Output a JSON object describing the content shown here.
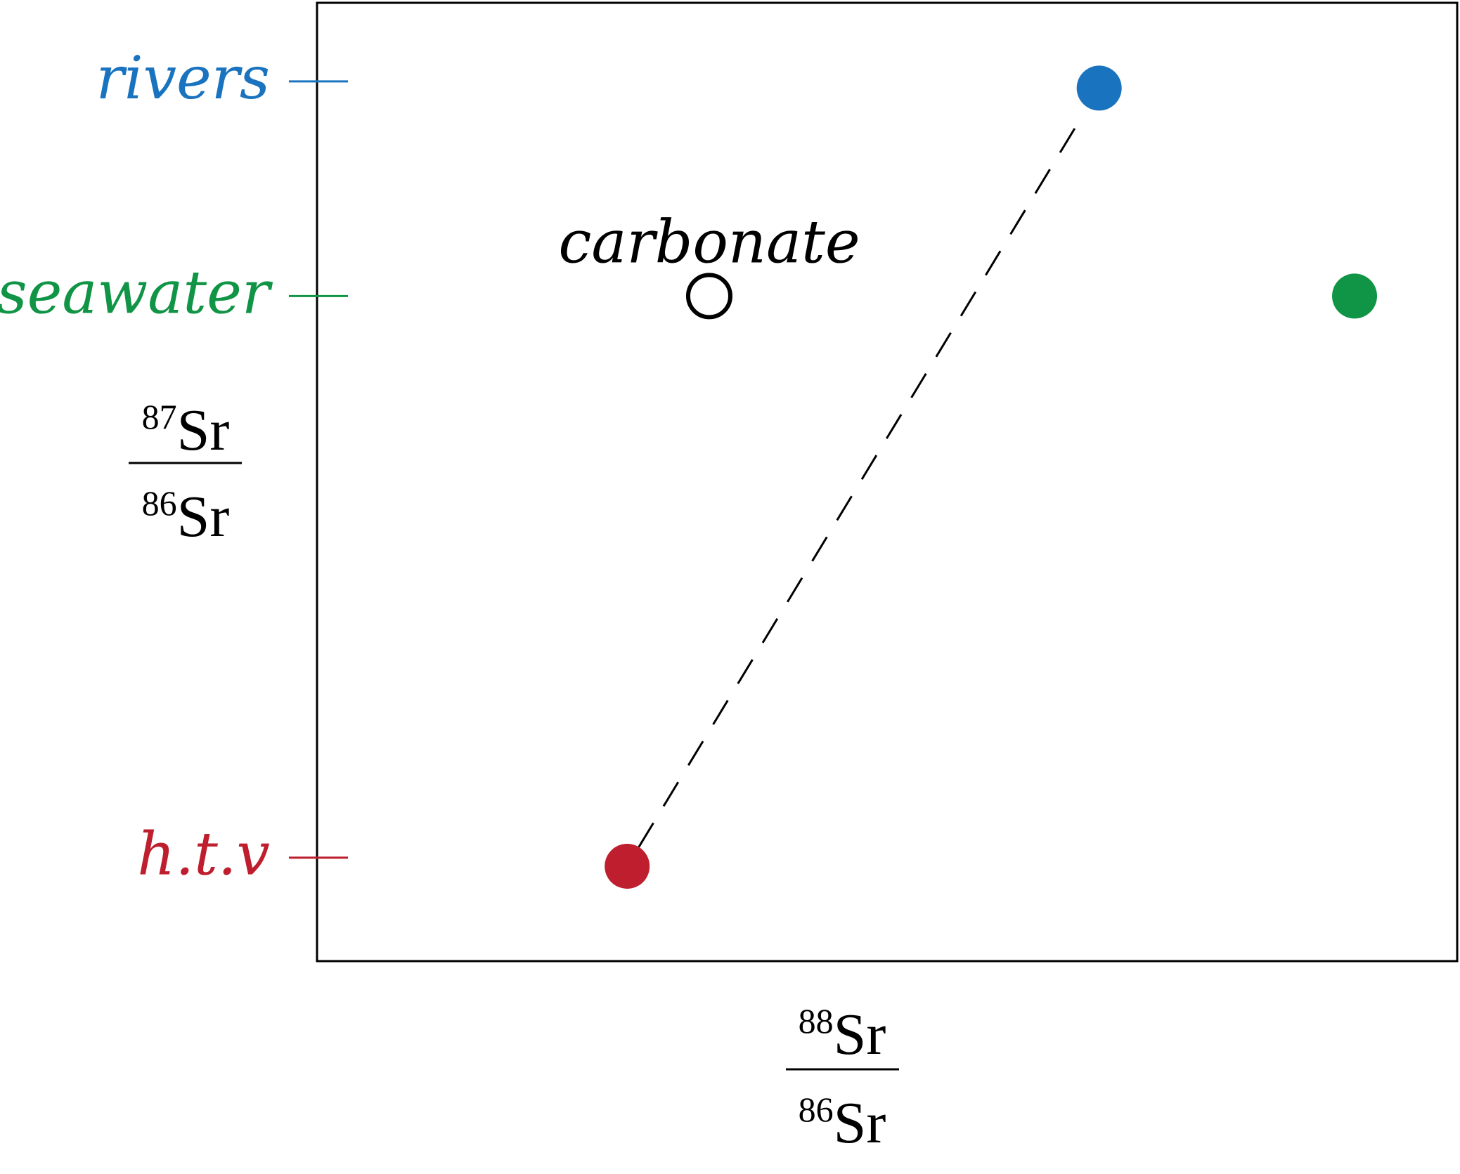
{
  "chart_data": {
    "type": "scatter",
    "title": "",
    "xlabel": {
      "numerator": {
        "mass": "88",
        "element": "Sr"
      },
      "denominator": {
        "mass": "86",
        "element": "Sr"
      }
    },
    "ylabel": {
      "numerator": {
        "mass": "87",
        "element": "Sr"
      },
      "denominator": {
        "mass": "86",
        "element": "Sr"
      }
    },
    "xlim": [
      0,
      1
    ],
    "ylim": [
      0,
      1
    ],
    "grid": false,
    "legend": "none",
    "y_ticks": [
      {
        "label": "rivers",
        "y": 0.918,
        "color": "#1a73be"
      },
      {
        "label": "seawater",
        "y": 0.694,
        "color": "#109445"
      },
      {
        "label": "h.t.v",
        "y": 0.108,
        "color": "#be1e2d"
      }
    ],
    "points": [
      {
        "label": "rivers",
        "x": 0.686,
        "y": 0.911,
        "color": "#1a73be",
        "filled": true
      },
      {
        "label": "seawater",
        "x": 0.91,
        "y": 0.694,
        "color": "#109445",
        "filled": true
      },
      {
        "label": "h.t.v",
        "x": 0.272,
        "y": 0.099,
        "color": "#be1e2d",
        "filled": true
      },
      {
        "label": "carbonate",
        "x": 0.344,
        "y": 0.694,
        "color": "#000000",
        "filled": false,
        "annotation": "carbonate"
      }
    ],
    "mixing_line": {
      "from": "h.t.v",
      "to": "rivers",
      "style": "dashed",
      "color": "#000000"
    }
  }
}
